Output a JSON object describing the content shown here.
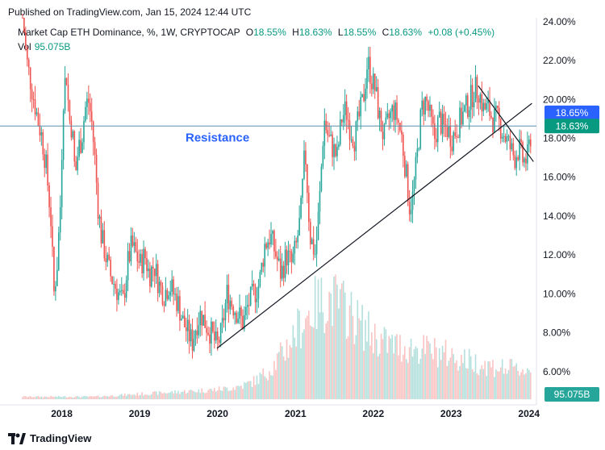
{
  "header": {
    "published": "Published on TradingView.com, Jan 15, 2024 12:44 UTC"
  },
  "legend": {
    "symbol": "Market Cap ETH Dominance, %, 1W, CRYPTOCAP",
    "o_label": "O",
    "o_value": "18.55%",
    "h_label": "H",
    "h_value": "18.63%",
    "l_label": "L",
    "l_value": "18.55%",
    "c_label": "C",
    "c_value": "18.63%",
    "change": "+0.08 (+0.45%)",
    "vol_label": "Vol",
    "vol_value": "95.075B"
  },
  "footer": {
    "brand": "TradingView"
  },
  "colors": {
    "up": "#26a69a",
    "down": "#ef5350",
    "resistance_line": "#5b8fa8",
    "annotation": "#2962ff",
    "price_badge": "#089981",
    "blue_badge": "#2962ff",
    "vol_badge": "#26a69a"
  },
  "chart_data": {
    "type": "candlestick",
    "title": "Market Cap ETH Dominance, %, 1W, CRYPTOCAP",
    "y_axis": {
      "min": 4.5,
      "max": 24.2,
      "ticks": [
        "24.00%",
        "22.00%",
        "20.00%",
        "18.00%",
        "16.00%",
        "14.00%",
        "12.00%",
        "10.00%",
        "8.00%",
        "6.00%"
      ],
      "side": "right"
    },
    "x_axis": {
      "ticks": [
        "2018",
        "2019",
        "2020",
        "2021",
        "2022",
        "2023",
        "2024"
      ]
    },
    "badges": [
      {
        "label": "18.65%",
        "value": 18.65,
        "color": "blue"
      },
      {
        "label": "18.63%",
        "value": 18.63,
        "color": "green"
      },
      {
        "label": "95.075B",
        "value": "volume",
        "color": "green"
      }
    ],
    "annotation": {
      "text": "Resistance",
      "level": 18.63
    },
    "trendlines": [
      {
        "from": [
          "2019-12-30",
          7.2
        ],
        "to": [
          "2024-01-15",
          19.8
        ]
      },
      {
        "from": [
          "2023-05-08",
          20.7
        ],
        "to": [
          "2024-01-22",
          16.8
        ]
      }
    ],
    "series_path": [
      [
        "2017-07-01",
        24.5
      ],
      [
        "2017-07-20",
        22.0
      ],
      [
        "2017-08-15",
        20.5
      ],
      [
        "2017-09-10",
        19.0
      ],
      [
        "2017-10-01",
        18.0
      ],
      [
        "2017-10-20",
        16.5
      ],
      [
        "2017-11-10",
        14.0
      ],
      [
        "2017-11-25",
        10.0
      ],
      [
        "2017-12-10",
        11.5
      ],
      [
        "2017-12-25",
        14.5
      ],
      [
        "2018-01-08",
        20.0
      ],
      [
        "2018-01-22",
        21.5
      ],
      [
        "2018-02-05",
        19.0
      ],
      [
        "2018-02-19",
        18.5
      ],
      [
        "2018-03-05",
        16.0
      ],
      [
        "2018-03-20",
        17.5
      ],
      [
        "2018-04-05",
        18.0
      ],
      [
        "2018-04-20",
        19.5
      ],
      [
        "2018-05-05",
        20.0
      ],
      [
        "2018-05-20",
        19.0
      ],
      [
        "2018-06-05",
        17.0
      ],
      [
        "2018-06-20",
        14.5
      ],
      [
        "2018-07-05",
        13.0
      ],
      [
        "2018-07-25",
        12.0
      ],
      [
        "2018-08-15",
        11.0
      ],
      [
        "2018-09-05",
        10.5
      ],
      [
        "2018-09-25",
        10.0
      ],
      [
        "2018-10-15",
        9.5
      ],
      [
        "2018-11-05",
        11.5
      ],
      [
        "2018-11-25",
        12.5
      ],
      [
        "2018-12-15",
        12.0
      ],
      [
        "2019-01-05",
        11.5
      ],
      [
        "2019-01-25",
        12.0
      ],
      [
        "2019-02-15",
        11.0
      ],
      [
        "2019-03-10",
        11.5
      ],
      [
        "2019-04-01",
        10.5
      ],
      [
        "2019-04-25",
        10.0
      ],
      [
        "2019-05-20",
        10.5
      ],
      [
        "2019-06-10",
        10.0
      ],
      [
        "2019-07-01",
        9.5
      ],
      [
        "2019-07-25",
        8.5
      ],
      [
        "2019-08-15",
        8.0
      ],
      [
        "2019-09-05",
        7.5
      ],
      [
        "2019-09-25",
        8.5
      ],
      [
        "2019-10-15",
        9.0
      ],
      [
        "2019-11-05",
        8.5
      ],
      [
        "2019-12-01",
        8.0
      ],
      [
        "2019-12-30",
        7.3
      ],
      [
        "2020-01-20",
        8.0
      ],
      [
        "2020-02-15",
        10.0
      ],
      [
        "2020-03-10",
        9.5
      ],
      [
        "2020-04-05",
        9.0
      ],
      [
        "2020-05-01",
        8.5
      ],
      [
        "2020-05-25",
        9.5
      ],
      [
        "2020-06-20",
        10.0
      ],
      [
        "2020-07-15",
        10.5
      ],
      [
        "2020-08-10",
        12.5
      ],
      [
        "2020-09-05",
        13.0
      ],
      [
        "2020-10-01",
        12.0
      ],
      [
        "2020-10-25",
        11.0
      ],
      [
        "2020-11-20",
        12.0
      ],
      [
        "2020-12-15",
        11.5
      ],
      [
        "2021-01-05",
        12.5
      ],
      [
        "2021-01-25",
        14.0
      ],
      [
        "2021-02-15",
        17.5
      ],
      [
        "2021-03-10",
        13.0
      ],
      [
        "2021-04-05",
        12.0
      ],
      [
        "2021-04-25",
        15.0
      ],
      [
        "2021-05-15",
        19.0
      ],
      [
        "2021-06-05",
        18.0
      ],
      [
        "2021-06-25",
        17.5
      ],
      [
        "2021-07-15",
        17.0
      ],
      [
        "2021-08-05",
        19.0
      ],
      [
        "2021-08-25",
        19.5
      ],
      [
        "2021-09-15",
        18.5
      ],
      [
        "2021-10-05",
        18.0
      ],
      [
        "2021-10-25",
        19.0
      ],
      [
        "2021-11-15",
        20.0
      ],
      [
        "2021-12-05",
        22.0
      ],
      [
        "2021-12-25",
        21.0
      ],
      [
        "2022-01-10",
        20.5
      ],
      [
        "2022-01-30",
        19.0
      ],
      [
        "2022-02-20",
        18.0
      ],
      [
        "2022-03-15",
        19.0
      ],
      [
        "2022-04-05",
        19.5
      ],
      [
        "2022-04-25",
        19.0
      ],
      [
        "2022-05-15",
        18.0
      ],
      [
        "2022-06-05",
        16.0
      ],
      [
        "2022-06-20",
        14.5
      ],
      [
        "2022-07-05",
        15.0
      ],
      [
        "2022-07-25",
        17.0
      ],
      [
        "2022-08-15",
        19.5
      ],
      [
        "2022-09-05",
        20.0
      ],
      [
        "2022-09-25",
        19.0
      ],
      [
        "2022-10-15",
        18.0
      ],
      [
        "2022-11-05",
        19.0
      ],
      [
        "2022-11-25",
        18.5
      ],
      [
        "2022-12-15",
        18.5
      ],
      [
        "2023-01-05",
        18.0
      ],
      [
        "2023-01-25",
        18.5
      ],
      [
        "2023-02-15",
        19.0
      ],
      [
        "2023-03-10",
        19.5
      ],
      [
        "2023-04-01",
        20.0
      ],
      [
        "2023-04-20",
        20.5
      ],
      [
        "2023-05-10",
        20.5
      ],
      [
        "2023-06-01",
        19.5
      ],
      [
        "2023-06-25",
        19.5
      ],
      [
        "2023-07-15",
        19.0
      ],
      [
        "2023-08-05",
        19.0
      ],
      [
        "2023-08-25",
        18.5
      ],
      [
        "2023-09-15",
        18.0
      ],
      [
        "2023-10-05",
        17.5
      ],
      [
        "2023-10-25",
        17.0
      ],
      [
        "2023-11-15",
        17.5
      ],
      [
        "2023-12-05",
        16.8
      ],
      [
        "2023-12-25",
        17.0
      ],
      [
        "2024-01-15",
        18.6
      ]
    ]
  }
}
